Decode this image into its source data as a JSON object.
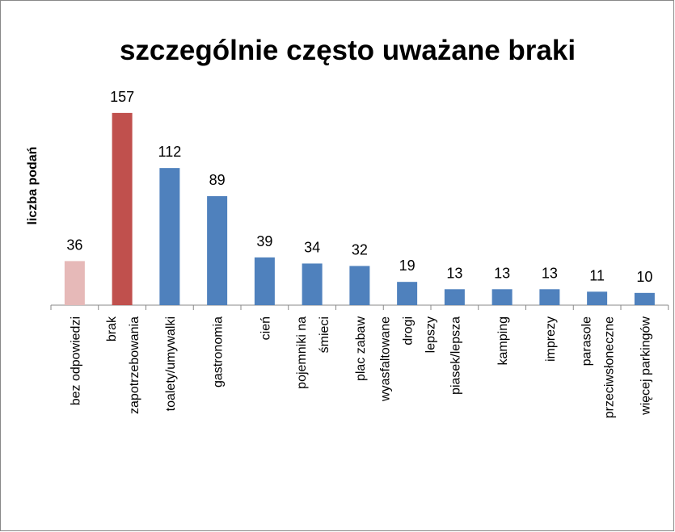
{
  "chart_data": {
    "type": "bar",
    "title": "szczególnie często uważane braki",
    "ylabel": "liczba podań",
    "categories": [
      "bez odpowiedzi",
      "brak\nzapotrzebowania",
      "toalety/umywalki",
      "gastronomia",
      "cień",
      "pojemniki na\nśmieci",
      "plac zabaw",
      "wyasfaltowane\ndrogi\nlepszy",
      "piasek/lepsza",
      "kamping",
      "imprezy",
      "parasole\nprzeciwsłoneczne",
      "więcej parkingów"
    ],
    "values": [
      36,
      157,
      112,
      89,
      39,
      34,
      32,
      19,
      13,
      13,
      13,
      11,
      10
    ],
    "colors": [
      "#e6b9b8",
      "#c0504d",
      "#4f81bd",
      "#4f81bd",
      "#4f81bd",
      "#4f81bd",
      "#4f81bd",
      "#4f81bd",
      "#4f81bd",
      "#4f81bd",
      "#4f81bd",
      "#4f81bd",
      "#4f81bd"
    ],
    "ylim": [
      0,
      180
    ]
  }
}
